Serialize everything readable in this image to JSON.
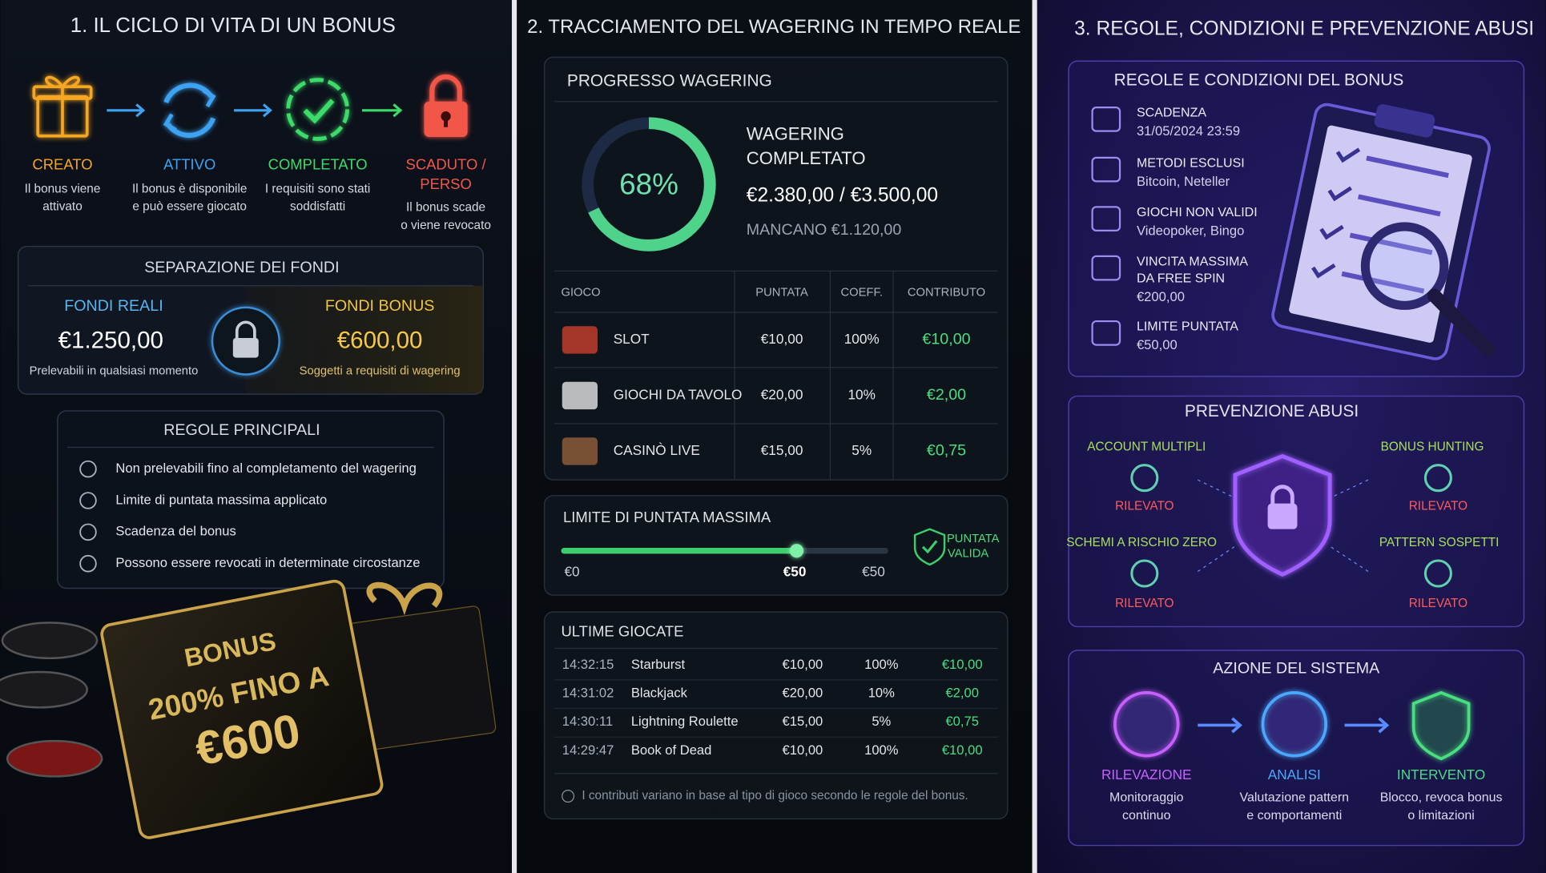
{
  "panels": [
    {
      "title": "1. IL CICLO DI VITA DI UN BONUS",
      "lifecycle": [
        {
          "label": [
            "CREATO"
          ],
          "description": [
            "Il bonus viene",
            "attivato"
          ]
        },
        {
          "label": [
            "ATTIVO"
          ],
          "description": [
            "Il bonus è disponibile",
            "e può essere giocato"
          ]
        },
        {
          "label": [
            "COMPLETATO"
          ],
          "description": [
            "I requisiti sono stati",
            "soddisfatti"
          ]
        },
        {
          "label": [
            "SCADUTO /",
            "PERSO"
          ],
          "description": [
            "Il bonus scade",
            "o viene revocato"
          ]
        }
      ],
      "funds": {
        "title": "SEPARAZIONE DEI FONDI",
        "real": {
          "title": "FONDI REALI",
          "amount": "€1.250,00",
          "note": "Prelevabili in qualsiasi momento"
        },
        "bonus": {
          "title": "FONDI BONUS",
          "amount": "€600,00",
          "note": "Soggetti a requisiti di wagering"
        }
      },
      "rules": {
        "title": "REGOLE PRINCIPALI",
        "items": [
          "Non prelevabili fino al completamento del wagering",
          "Limite di puntata massima applicato",
          "Scadenza del bonus",
          "Possono essere revocati in determinate circostanze"
        ]
      },
      "promo": [
        "BONUS",
        "200% FINO A",
        "€600"
      ]
    },
    {
      "title": "2. TRACCIAMENTO DEL WAGERING IN TEMPO REALE",
      "progress": {
        "title": "PROGRESSO WAGERING",
        "percent": {
          "value": 68,
          "label": "68%"
        },
        "status": [
          "WAGERING",
          "COMPLETATO"
        ],
        "amount": "€2.380,00 / €3.500,00",
        "remaining": "MANCANO €1.120,00"
      },
      "table": {
        "headers": [
          "GIOCO",
          "PUNTATA",
          "COEFF.",
          "CONTRIBUTO"
        ],
        "rows": [
          [
            "SLOT",
            "€10,00",
            "100%",
            "€10,00"
          ],
          [
            "GIOCHI DA TAVOLO",
            "€20,00",
            "10%",
            "€2,00"
          ],
          [
            "CASINÒ LIVE",
            "€15,00",
            "5%",
            "€0,75"
          ]
        ]
      },
      "limit": {
        "title": "LIMITE DI PUNTATA MASSIMA",
        "scale": [
          "€0",
          "€50",
          "€50"
        ],
        "badge": [
          "PUNTATA",
          "VALIDA"
        ]
      },
      "recent": {
        "title": "ULTIME GIOCATE",
        "rows": [
          [
            "14:32:15",
            "Starburst",
            "€10,00",
            "100%",
            "€10,00"
          ],
          [
            "14:31:02",
            "Blackjack",
            "€20,00",
            "10%",
            "€2,00"
          ],
          [
            "14:30:11",
            "Lightning Roulette",
            "€15,00",
            "5%",
            "€0,75"
          ],
          [
            "14:29:47",
            "Book of Dead",
            "€10,00",
            "100%",
            "€10,00"
          ]
        ],
        "note": "I contributi variano in base al tipo di gioco secondo le regole del bonus."
      }
    },
    {
      "title": "3. REGOLE, CONDIZIONI E PREVENZIONE ABUSI",
      "conditions": {
        "title": "REGOLE E CONDIZIONI DEL BONUS",
        "items": [
          {
            "label": [
              "SCADENZA"
            ],
            "value": "31/05/2024 23:59"
          },
          {
            "label": [
              "METODI ESCLUSI"
            ],
            "value": "Bitcoin, Neteller"
          },
          {
            "label": [
              "GIOCHI NON VALIDI"
            ],
            "value": "Videopoker, Bingo"
          },
          {
            "label": [
              "VINCITA MASSIMA",
              "DA FREE SPIN"
            ],
            "value": "€200,00"
          },
          {
            "label": [
              "LIMITE PUNTATA"
            ],
            "value": "€50,00"
          }
        ]
      },
      "abuse": {
        "title": "PREVENZIONE ABUSI",
        "items": [
          {
            "label": "ACCOUNT MULTIPLI",
            "status": "RILEVATO"
          },
          {
            "label": "BONUS HUNTING",
            "status": "RILEVATO"
          },
          {
            "label": "SCHEMI A RISCHIO ZERO",
            "status": "RILEVATO"
          },
          {
            "label": "PATTERN SOSPETTI",
            "status": "RILEVATO"
          }
        ]
      },
      "action": {
        "title": "AZIONE DEL SISTEMA",
        "steps": [
          {
            "label": "RILEVAZIONE",
            "description": [
              "Monitoraggio",
              "continuo"
            ]
          },
          {
            "label": "ANALISI",
            "description": [
              "Valutazione pattern",
              "e comportamenti"
            ]
          },
          {
            "label": "INTERVENTO",
            "description": [
              "Blocco, revoca bonus",
              "o limitazioni"
            ]
          }
        ]
      }
    }
  ]
}
